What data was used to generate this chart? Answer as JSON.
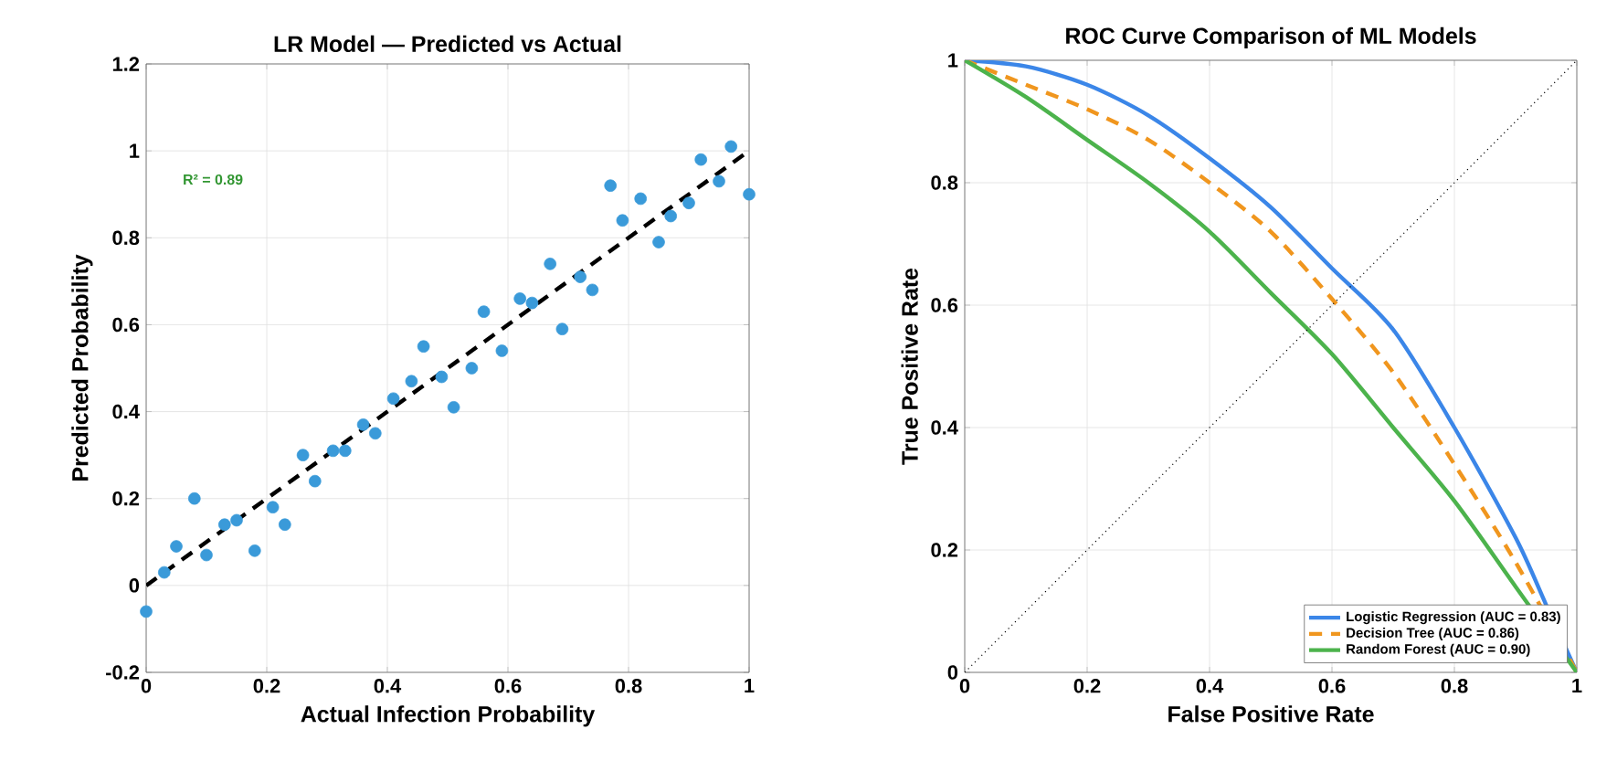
{
  "chart_data": [
    {
      "type": "scatter",
      "title": "LR Model — Predicted vs Actual",
      "xlabel": "Actual Infection Probability",
      "ylabel": "Predicted Probability",
      "xlim": [
        0,
        1
      ],
      "ylim": [
        -0.2,
        1.2
      ],
      "xticks": [
        0,
        0.2,
        0.4,
        0.6,
        0.8,
        1
      ],
      "yticks": [
        -0.2,
        0,
        0.2,
        0.4,
        0.6,
        0.8,
        1,
        1.2
      ],
      "grid": true,
      "annotations": [
        "R² = 0.89"
      ],
      "series": [
        {
          "type": "scatter",
          "marker": "circle",
          "color": "#3a9ad9",
          "x": [
            0,
            0.03,
            0.05,
            0.08,
            0.1,
            0.13,
            0.15,
            0.18,
            0.21,
            0.23,
            0.26,
            0.28,
            0.31,
            0.33,
            0.36,
            0.38,
            0.41,
            0.44,
            0.46,
            0.49,
            0.51,
            0.54,
            0.56,
            0.59,
            0.62,
            0.64,
            0.67,
            0.69,
            0.72,
            0.74,
            0.77,
            0.79,
            0.82,
            0.85,
            0.87,
            0.9,
            0.92,
            0.95,
            0.97,
            1
          ],
          "values": [
            -0.06,
            0.03,
            0.09,
            0.2,
            0.07,
            0.14,
            0.15,
            0.08,
            0.18,
            0.14,
            0.3,
            0.24,
            0.31,
            0.31,
            0.37,
            0.35,
            0.43,
            0.47,
            0.55,
            0.48,
            0.41,
            0.5,
            0.63,
            0.54,
            0.66,
            0.65,
            0.74,
            0.59,
            0.71,
            0.68,
            0.92,
            0.84,
            0.89,
            0.79,
            0.85,
            0.88,
            0.98,
            0.93,
            1.01,
            0.9
          ]
        },
        {
          "type": "line",
          "line_style": "dashed",
          "color": "#000000",
          "x": [
            0,
            1
          ],
          "values": [
            0,
            1
          ]
        }
      ]
    },
    {
      "type": "line",
      "title": "ROC Curve Comparison of ML Models",
      "xlabel": "False Positive Rate",
      "ylabel": "True Positive Rate",
      "xlim": [
        0,
        1
      ],
      "ylim": [
        0,
        1
      ],
      "xticks": [
        0,
        0.2,
        0.4,
        0.6,
        0.8,
        1
      ],
      "yticks": [
        0,
        0.2,
        0.4,
        0.6,
        0.8,
        1
      ],
      "grid": true,
      "legend": "bottom right",
      "series": [
        {
          "name": "Logistic Regression (AUC = 0.83)",
          "color": "#3b86e8",
          "line_style": "solid",
          "x": [
            0,
            0.1,
            0.2,
            0.3,
            0.4,
            0.5,
            0.6,
            0.7,
            0.8,
            0.9,
            0.95,
            1
          ],
          "values": [
            1,
            0.99,
            0.96,
            0.91,
            0.84,
            0.76,
            0.66,
            0.56,
            0.4,
            0.22,
            0.11,
            0
          ]
        },
        {
          "name": "Decision Tree (AUC = 0.86)",
          "color": "#f0961e",
          "line_style": "dashed",
          "x": [
            0,
            0.1,
            0.2,
            0.3,
            0.4,
            0.5,
            0.6,
            0.7,
            0.8,
            0.9,
            0.95,
            1
          ],
          "values": [
            1,
            0.96,
            0.92,
            0.87,
            0.8,
            0.72,
            0.61,
            0.49,
            0.34,
            0.18,
            null,
            0
          ]
        },
        {
          "name": "Random Forest (AUC = 0.90)",
          "color": "#4cb34c",
          "line_style": "solid",
          "x": [
            0,
            0.1,
            0.2,
            0.3,
            0.4,
            0.5,
            0.6,
            0.7,
            0.8,
            0.9,
            1
          ],
          "values": [
            1,
            0.94,
            0.87,
            0.8,
            0.72,
            0.62,
            0.52,
            0.4,
            0.28,
            0.14,
            0
          ]
        },
        {
          "color": "#000000",
          "line_style": "dotted",
          "x": [
            0,
            1
          ],
          "values": [
            0,
            1
          ]
        }
      ]
    }
  ]
}
